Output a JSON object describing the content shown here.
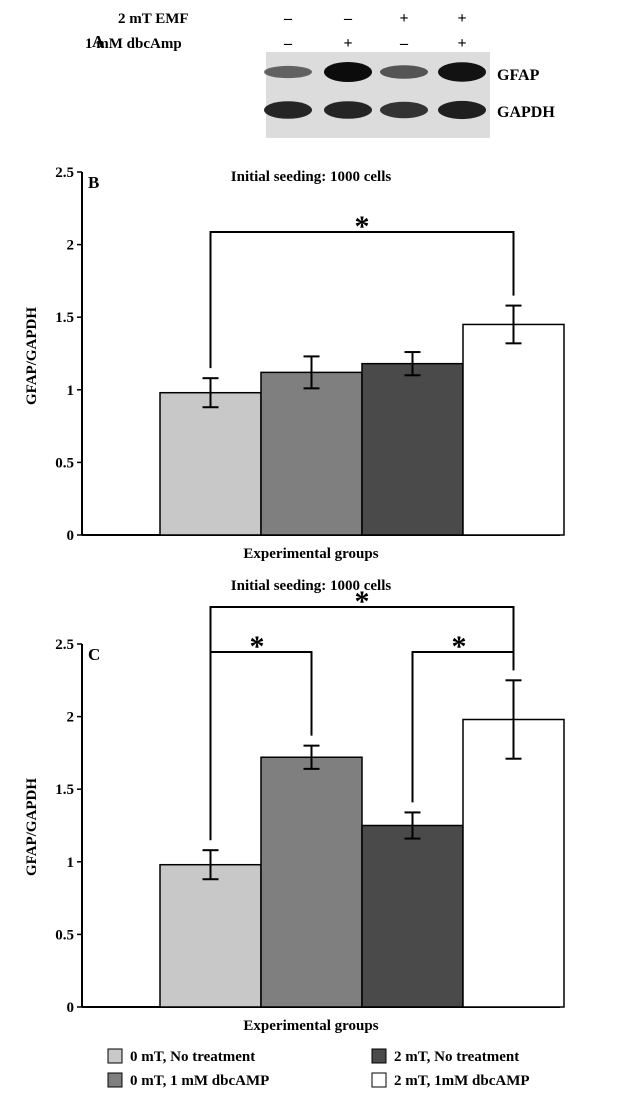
{
  "panel_a": {
    "label": "A",
    "row_labels": [
      "2 mT EMF",
      "1 mM dbcAmp"
    ],
    "signs_emf": [
      "–",
      "–",
      "+",
      "+"
    ],
    "signs_dbc": [
      "–",
      "+",
      "–",
      "+"
    ],
    "band_labels": [
      "GFAP",
      "GAPDH"
    ],
    "gfap_intensity": [
      0.35,
      1.0,
      0.45,
      0.95
    ],
    "gapdh_intensity": [
      0.8,
      0.8,
      0.7,
      0.85
    ]
  },
  "chart_data": [
    {
      "type": "bar",
      "panel_label": "B",
      "title": "Initial seeding: 1000 cells",
      "xlabel": "Experimental groups",
      "ylabel": "GFAP/GAPDH",
      "ylim": [
        0,
        2.5
      ],
      "yticks": [
        0,
        0.5,
        1,
        1.5,
        2,
        2.5
      ],
      "ytick_labels": [
        "0",
        "0.5",
        "1",
        "1.5",
        "2",
        "2.5"
      ],
      "categories": [
        "0 mT, No treatment",
        "0 mT, 1 mM dbcAMP",
        "2 mT, No treatment",
        "2 mT, 1mM dbcAMP"
      ],
      "values": [
        0.98,
        1.12,
        1.18,
        1.45
      ],
      "errors": [
        0.1,
        0.11,
        0.08,
        0.13
      ],
      "significance": [
        {
          "from": 0,
          "to": 3,
          "label": "*"
        }
      ]
    },
    {
      "type": "bar",
      "panel_label": "C",
      "title": "Initial seeding: 1000 cells",
      "xlabel": "Experimental groups",
      "ylabel": "GFAP/GAPDH",
      "ylim": [
        0,
        2.5
      ],
      "yticks": [
        0,
        0.5,
        1,
        1.5,
        2,
        2.5
      ],
      "ytick_labels": [
        "0",
        "0.5",
        "1",
        "1.5",
        "2",
        "2.5"
      ],
      "categories": [
        "0 mT, No treatment",
        "0 mT, 1 mM dbcAMP",
        "2 mT, No treatment",
        "2 mT, 1mM dbcAMP"
      ],
      "values": [
        0.98,
        1.72,
        1.25,
        1.98
      ],
      "errors": [
        0.1,
        0.08,
        0.09,
        0.27
      ],
      "significance": [
        {
          "from": 0,
          "to": 3,
          "label": "*"
        },
        {
          "from": 0,
          "to": 1,
          "label": "*"
        },
        {
          "from": 2,
          "to": 3,
          "label": "*"
        }
      ]
    }
  ],
  "legend": {
    "items": [
      {
        "label": "0 mT, No treatment",
        "color": "#c8c8c8"
      },
      {
        "label": "0 mT, 1 mM dbcAMP",
        "color": "#7f7f7f"
      },
      {
        "label": "2 mT, No treatment",
        "color": "#4a4a4a"
      },
      {
        "label": "2 mT, 1mM dbcAMP",
        "color": "#ffffff"
      }
    ]
  }
}
